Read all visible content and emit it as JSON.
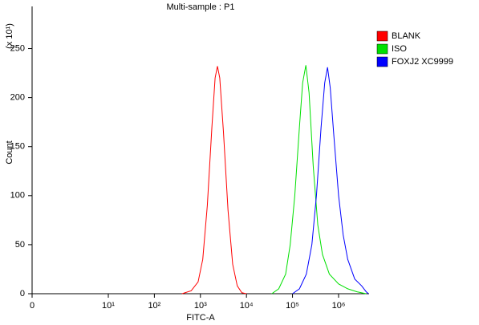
{
  "chart_data": {
    "type": "line",
    "title": "Multi-sample : P1",
    "xlabel": "FITC-A",
    "ylabel": "Count",
    "ylabel_multiplier": "(x 10¹)",
    "xscale": "biexponential",
    "xlim": [
      0,
      4600000
    ],
    "xticks": [
      0,
      {
        "value": 10,
        "label": "10¹"
      },
      {
        "value": 100,
        "label": "10²"
      },
      {
        "value": 1000,
        "label": "10³"
      },
      {
        "value": 10000,
        "label": "10⁴"
      },
      {
        "value": 100000,
        "label": "10⁵"
      },
      {
        "value": 1000000,
        "label": "10⁶"
      }
    ],
    "ylim": [
      0,
      293
    ],
    "yticks": [
      0,
      50,
      100,
      150,
      200,
      250
    ],
    "legend": "top-right",
    "series": [
      {
        "name": "BLANK",
        "color": "#ff0000",
        "x": [
          398,
          631,
          891,
          1122,
          1413,
          1778,
          2089,
          2344,
          2630,
          3162,
          3981,
          5012,
          6310,
          7943,
          10000
        ],
        "values": [
          0,
          3,
          12,
          35,
          90,
          170,
          220,
          232,
          220,
          165,
          85,
          30,
          8,
          1,
          0
        ]
      },
      {
        "name": "ISO",
        "color": "#00e000",
        "x": [
          35481,
          50119,
          70795,
          89125,
          112202,
          141254,
          165959,
          194984,
          229087,
          281838,
          354813,
          446684,
          630957,
          1000000,
          1584893,
          2511886,
          3981072
        ],
        "values": [
          0,
          5,
          20,
          50,
          100,
          170,
          215,
          233,
          205,
          130,
          70,
          40,
          20,
          10,
          5,
          2,
          0
        ]
      },
      {
        "name": "FOXJ2 XC9999",
        "color": "#0000ff",
        "x": [
          100000,
          141254,
          199526,
          263027,
          331131,
          416869,
          501187,
          575440,
          660693,
          794328,
          1000000,
          1258925,
          1584893,
          2238721,
          3162278,
          3981072,
          4466836
        ],
        "values": [
          0,
          5,
          20,
          50,
          100,
          170,
          215,
          231,
          210,
          160,
          100,
          60,
          35,
          15,
          8,
          2,
          0
        ]
      }
    ]
  }
}
